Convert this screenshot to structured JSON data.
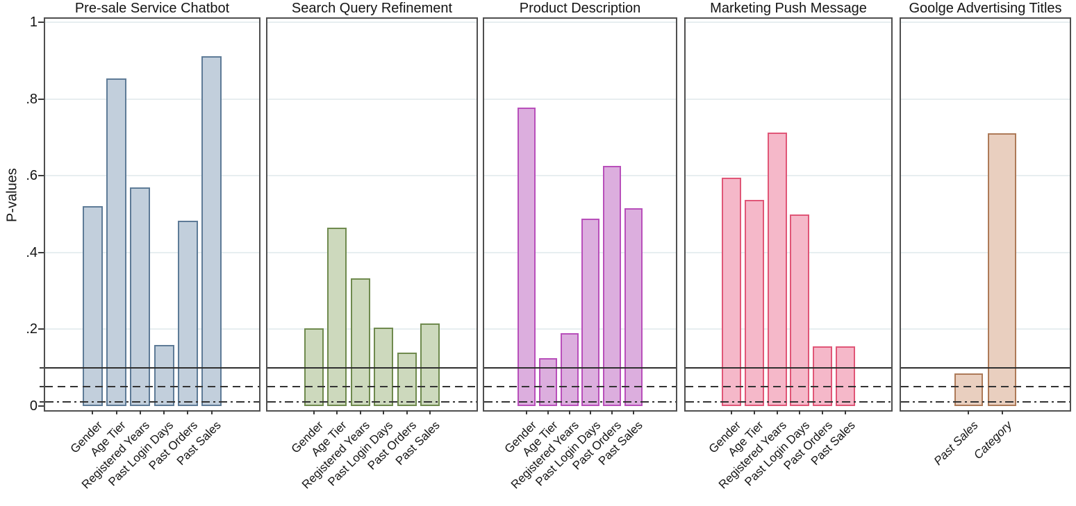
{
  "chart_data": {
    "type": "bar",
    "ylabel": "P-values",
    "ylim": [
      0,
      1
    ],
    "grid": true,
    "legend_position": "none",
    "y_ticks": [
      {
        "value": 1,
        "label": "1"
      },
      {
        "value": 0.8,
        "label": ".8"
      },
      {
        "value": 0.6,
        "label": ".6"
      },
      {
        "value": 0.4,
        "label": ".4"
      },
      {
        "value": 0.2,
        "label": ".2"
      },
      {
        "value": 0,
        "label": "0"
      }
    ],
    "minor_tick_values": [
      0.1,
      0.05,
      0.01
    ],
    "grid_values": [
      1,
      0.8,
      0.6,
      0.4,
      0.2
    ],
    "reference_lines": [
      {
        "value": 0.1,
        "style": "solid",
        "color": "#2f2f2f"
      },
      {
        "value": 0.05,
        "style": "dashed",
        "color": "#333333"
      },
      {
        "value": 0.01,
        "style": "dashdot",
        "color": "#333333"
      }
    ],
    "panels": [
      {
        "title": "Pre-sale Service Chatbot",
        "categories": [
          "Gender",
          "Age Tier",
          "Registered Years",
          "Past Login Days",
          "Past Orders",
          "Past Sales"
        ],
        "values": [
          0.52,
          0.853,
          0.57,
          0.16,
          0.483,
          0.912
        ],
        "bar_fill": "#c2cfdc",
        "bar_stroke": "#5e7b97",
        "label_style": "normal"
      },
      {
        "title": "Search Query Refinement",
        "categories": [
          "Gender",
          "Age Tier",
          "Registered Years",
          "Past Login Days",
          "Past Orders",
          "Past Sales"
        ],
        "values": [
          0.203,
          0.465,
          0.333,
          0.205,
          0.14,
          0.215
        ],
        "bar_fill": "#cdd9bd",
        "bar_stroke": "#6f8a4e",
        "label_style": "normal"
      },
      {
        "title": "Product Description",
        "categories": [
          "Gender",
          "Age Tier",
          "Registered Years",
          "Past Login Days",
          "Past Orders",
          "Past Sales"
        ],
        "values": [
          0.777,
          0.125,
          0.19,
          0.488,
          0.625,
          0.515
        ],
        "bar_fill": "#dcaede",
        "bar_stroke": "#b84fba",
        "label_style": "normal"
      },
      {
        "title": "Marketing Push Message",
        "categories": [
          "Gender",
          "Age Tier",
          "Registered Years",
          "Past Login Days",
          "Past Orders",
          "Past Sales"
        ],
        "values": [
          0.595,
          0.538,
          0.712,
          0.5,
          0.155,
          0.155
        ],
        "bar_fill": "#f5b8c9",
        "bar_stroke": "#e05677",
        "label_style": "normal"
      },
      {
        "title": "Goolge Advertising Titles",
        "categories": [
          "Past Sales",
          "Category"
        ],
        "values": [
          0.085,
          0.71
        ],
        "bar_fill": "#e9cfbf",
        "bar_stroke": "#ad7a58",
        "label_style": "italic"
      }
    ]
  }
}
